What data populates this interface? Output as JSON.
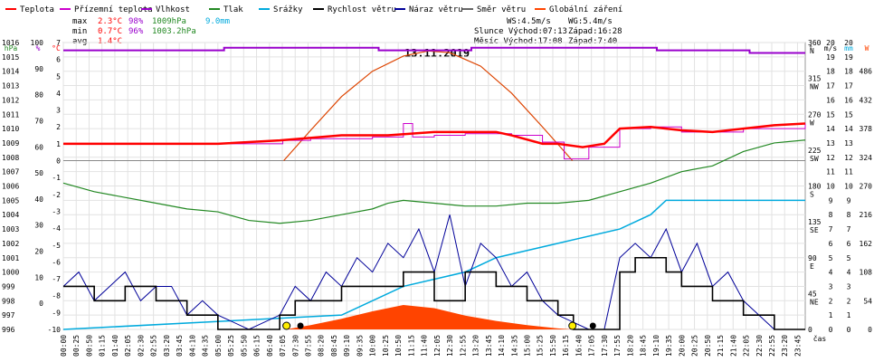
{
  "chart_data": {
    "type": "line",
    "title": "13.11.2019",
    "xlabel": "čas",
    "legend": [
      {
        "name": "Teplota",
        "color": "#ff0000"
      },
      {
        "name": "Přízemní teplota",
        "color": "#cc00cc"
      },
      {
        "name": "Vlhkost",
        "color": "#9900cc"
      },
      {
        "name": "Tlak",
        "color": "#228822"
      },
      {
        "name": "Srážky",
        "color": "#00aadd"
      },
      {
        "name": "Rychlost větru",
        "color": "#000000"
      },
      {
        "name": "Náraz větru",
        "color": "#000099"
      },
      {
        "name": "Směr větru",
        "color": "#666666"
      },
      {
        "name": "Globální záření",
        "color": "#ff4400"
      }
    ],
    "stats": {
      "max": {
        "label": "max",
        "temp": "2.3°C",
        "hum": "98%",
        "press": "1009hPa",
        "rain": "9.0mm"
      },
      "min": {
        "label": "min",
        "temp": "0.7°C",
        "hum": "96%",
        "press": "1003.2hPa"
      },
      "avg": {
        "label": "avg",
        "temp": "1.4°C"
      }
    },
    "wind_info": {
      "ws": "WS:4.5m/s",
      "wg": "WG:5.4m/s",
      "sun_rise": "Slunce Východ:07:13",
      "sun_set": "Západ:16:28",
      "moon_rise": "Měsíc  Východ:17:08",
      "moon_set": "Západ:7:40"
    },
    "axes": {
      "hPa": {
        "label": "hPa",
        "range": [
          996,
          1016
        ],
        "ticks": [
          1016,
          1015,
          1014,
          1013,
          1012,
          1011,
          1010,
          1009,
          1008,
          1007,
          1006,
          1005,
          1004,
          1003,
          1002,
          1001,
          1000,
          999,
          998,
          997,
          996
        ],
        "color": "#228822"
      },
      "pct": {
        "label": "%",
        "range": [
          0,
          100
        ],
        "ticks": [
          100,
          90,
          80,
          70,
          60,
          50,
          40,
          30,
          20,
          10,
          0
        ],
        "color": "#9900cc"
      },
      "temp": {
        "label": "°C",
        "range": [
          -10,
          7
        ],
        "ticks": [
          7,
          6,
          5,
          4,
          3,
          2,
          1,
          0,
          -1,
          -2,
          -3,
          -4,
          -5,
          -6,
          -7,
          -8,
          -9,
          -10
        ],
        "color": "#ff0000"
      },
      "dir": {
        "label": "°",
        "range": [
          0,
          360
        ],
        "ticks": [
          "360 N",
          "315 NW",
          "270 W",
          "225 SW",
          "180 S",
          "135 SE",
          "90 E",
          "45 NE",
          "0"
        ],
        "color": "#000000"
      },
      "ms": {
        "label": "m/s",
        "range": [
          0,
          20
        ],
        "ticks": [
          20,
          19,
          18,
          17,
          16,
          15,
          14,
          13,
          12,
          11,
          10,
          9,
          8,
          7,
          6,
          5,
          4,
          3,
          2,
          1,
          0
        ],
        "color": "#000000"
      },
      "mm": {
        "label": "mm",
        "range": [
          0,
          20
        ],
        "ticks": [
          20,
          19,
          18,
          17,
          16,
          15,
          14,
          13,
          12,
          11,
          10,
          9,
          8,
          7,
          6,
          5,
          4,
          3,
          2,
          1,
          0
        ],
        "color": "#00aadd"
      },
      "W": {
        "label": "W",
        "ticks": [
          486,
          432,
          378,
          324,
          270,
          216,
          162,
          108,
          54,
          0
        ],
        "color": "#ff4400"
      }
    },
    "x_ticks": [
      "00:00",
      "00:25",
      "00:50",
      "01:15",
      "01:40",
      "02:05",
      "02:30",
      "02:55",
      "03:20",
      "03:45",
      "04:10",
      "04:35",
      "05:00",
      "05:25",
      "05:50",
      "06:15",
      "06:40",
      "07:05",
      "07:30",
      "07:55",
      "08:20",
      "08:45",
      "09:10",
      "09:35",
      "10:00",
      "10:25",
      "10:50",
      "11:15",
      "11:40",
      "12:05",
      "12:30",
      "12:55",
      "13:20",
      "13:45",
      "14:10",
      "14:35",
      "15:00",
      "15:25",
      "15:50",
      "16:15",
      "16:40",
      "17:05",
      "17:30",
      "17:55",
      "18:20",
      "18:45",
      "19:10",
      "19:35",
      "20:00",
      "20:25",
      "20:50",
      "21:15",
      "21:40",
      "22:05",
      "22:30",
      "22:55",
      "23:20",
      "23:45"
    ],
    "series": {
      "humidity": {
        "hours": [
          0,
          5,
          5.2,
          10,
          10.2,
          13,
          13.2,
          19,
          19.2,
          22,
          22.2,
          24
        ],
        "values": [
          97,
          97,
          98,
          98,
          97,
          97,
          98,
          98,
          97,
          97,
          96,
          96
        ]
      },
      "temp_ground": {
        "hours": [
          0,
          7,
          7.1,
          8,
          10,
          11,
          11.3,
          12,
          13,
          14.5,
          15.5,
          16.2,
          17,
          18,
          19,
          20,
          22,
          24
        ],
        "values": [
          1,
          1,
          1.2,
          1.3,
          1.4,
          2.2,
          1.4,
          1.5,
          1.6,
          1.5,
          1.1,
          0.1,
          0.8,
          1.9,
          2.0,
          1.7,
          1.9,
          2.2
        ]
      },
      "temp": {
        "hours": [
          0,
          3,
          5,
          7,
          9,
          10.5,
          12,
          14,
          14.5,
          15.5,
          16,
          16.8,
          17.5,
          18,
          19,
          20,
          21,
          22,
          23,
          24
        ],
        "values": [
          1.0,
          1.0,
          1.0,
          1.2,
          1.5,
          1.5,
          1.7,
          1.7,
          1.5,
          1.0,
          1.0,
          0.8,
          1.0,
          1.9,
          2.0,
          1.8,
          1.7,
          1.9,
          2.1,
          2.2
        ]
      },
      "pressure": {
        "hours": [
          0,
          1,
          2,
          3,
          4,
          5,
          6,
          7,
          8,
          9,
          10,
          10.5,
          11,
          12,
          13,
          14,
          15,
          16,
          17,
          18,
          19,
          20,
          21,
          22,
          23,
          24
        ],
        "values": [
          1006.2,
          1005.6,
          1005.2,
          1004.8,
          1004.4,
          1004.2,
          1003.6,
          1003.4,
          1003.6,
          1004.0,
          1004.4,
          1004.8,
          1005.0,
          1004.8,
          1004.6,
          1004.6,
          1004.8,
          1004.8,
          1005.0,
          1005.6,
          1006.2,
          1007.0,
          1007.4,
          1008.4,
          1009.0,
          1009.2
        ]
      },
      "rain": {
        "hours": [
          0,
          9,
          11,
          13,
          14,
          16,
          18,
          19,
          19.5,
          20,
          21,
          24
        ],
        "values": [
          0,
          1,
          3,
          4,
          5,
          6,
          7,
          8,
          9,
          9,
          9,
          9
        ]
      },
      "wind_speed": {
        "hours": [
          0,
          1,
          2,
          3,
          4,
          5,
          6,
          7,
          7.5,
          8,
          9,
          10,
          11,
          12,
          13,
          14,
          15,
          16,
          16.5,
          17,
          17.5,
          18,
          18.5,
          19,
          19.5,
          20,
          21,
          22,
          23,
          24
        ],
        "values": [
          3,
          2,
          3,
          2,
          1,
          0,
          0,
          1,
          2,
          2,
          3,
          3,
          4,
          2,
          4,
          3,
          2,
          1,
          0,
          0,
          0,
          4,
          5,
          5,
          4,
          3,
          2,
          1,
          0,
          0
        ]
      },
      "wind_gust": {
        "hours": [
          0,
          0.5,
          1,
          1.5,
          2,
          2.5,
          3,
          3.5,
          4,
          4.5,
          5,
          6,
          7,
          7.5,
          8,
          8.5,
          9,
          9.5,
          10,
          10.5,
          11,
          11.5,
          12,
          12.5,
          13,
          13.5,
          14,
          14.5,
          15,
          15.5,
          16,
          17,
          17.5,
          18,
          18.5,
          19,
          19.5,
          20,
          20.5,
          21,
          21.5,
          22,
          22.5,
          23,
          24
        ],
        "values": [
          3,
          4,
          2,
          3,
          4,
          2,
          3,
          3,
          1,
          2,
          1,
          0,
          1,
          3,
          2,
          4,
          3,
          5,
          4,
          6,
          5,
          7,
          4,
          8,
          3,
          6,
          5,
          3,
          4,
          2,
          1,
          0,
          0,
          5,
          6,
          5,
          7,
          4,
          6,
          3,
          4,
          2,
          1,
          0,
          0
        ]
      },
      "radiation": {
        "hours": [
          7.2,
          8,
          9,
          10,
          11,
          12,
          13,
          14,
          15,
          16,
          16.5
        ],
        "values": [
          0,
          8,
          20,
          34,
          46,
          40,
          26,
          16,
          8,
          2,
          0
        ]
      },
      "solar_curve": {
        "hours": [
          7.13,
          8,
          9,
          10,
          11,
          11.8,
          12.5,
          13.5,
          14.5,
          15.5,
          16.47
        ],
        "values": [
          0,
          1.8,
          3.8,
          5.3,
          6.2,
          6.5,
          6.4,
          5.6,
          4.0,
          2.0,
          0
        ]
      }
    }
  }
}
